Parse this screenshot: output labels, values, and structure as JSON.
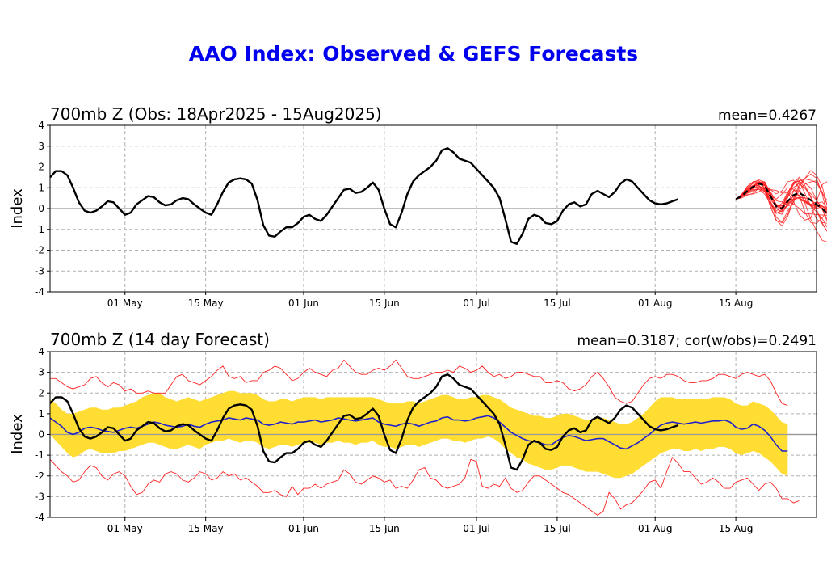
{
  "title": "AAO Index: Observed & GEFS Forecasts",
  "colors": {
    "title": "#0000ee",
    "obs": "#000000",
    "member": "#ff2020",
    "mean": "#2020cc",
    "spread": "#ffdd33",
    "grid": "#b0b0b0"
  },
  "chart_data": [
    {
      "type": "line",
      "title": "700mb Z (Obs: 18Apr2025 - 15Aug2025)",
      "stat": "mean=0.4267",
      "ylabel": "Index",
      "ylim": [
        -4,
        4
      ],
      "yticks": [
        "4",
        "3",
        "2",
        "1",
        "0",
        "-1",
        "-2",
        "-3",
        "-4"
      ],
      "xticks": [
        {
          "day": 13,
          "label": "01 May"
        },
        {
          "day": 27,
          "label": "15 May"
        },
        {
          "day": 44,
          "label": "01 Jun"
        },
        {
          "day": 58,
          "label": "15 Jun"
        },
        {
          "day": 74,
          "label": "01 Jul"
        },
        {
          "day": 88,
          "label": "15 Jul"
        },
        {
          "day": 105,
          "label": "01 Aug"
        },
        {
          "day": 119,
          "label": "15 Aug"
        }
      ],
      "xlim": [
        0,
        133
      ],
      "series": [
        {
          "name": "Observed",
          "values": [
            1.5,
            1.8,
            1.8,
            1.6,
            1.0,
            0.3,
            -0.1,
            -0.2,
            -0.1,
            0.1,
            0.35,
            0.3,
            0.0,
            -0.3,
            -0.2,
            0.2,
            0.4,
            0.6,
            0.55,
            0.3,
            0.15,
            0.2,
            0.4,
            0.5,
            0.45,
            0.2,
            0.0,
            -0.2,
            -0.3,
            0.2,
            0.8,
            1.25,
            1.4,
            1.45,
            1.4,
            1.2,
            0.4,
            -0.8,
            -1.3,
            -1.35,
            -1.1,
            -0.9,
            -0.9,
            -0.7,
            -0.4,
            -0.3,
            -0.5,
            -0.6,
            -0.3,
            0.1,
            0.5,
            0.9,
            0.95,
            0.75,
            0.8,
            1.0,
            1.25,
            0.9,
            0.0,
            -0.75,
            -0.9,
            -0.2,
            0.7,
            1.3,
            1.6,
            1.8,
            2.0,
            2.3,
            2.8,
            2.9,
            2.7,
            2.4,
            2.3,
            2.2,
            1.9,
            1.6,
            1.3,
            1.0,
            0.5,
            -0.5,
            -1.6,
            -1.7,
            -1.2,
            -0.5,
            -0.3,
            -0.4,
            -0.7,
            -0.75,
            -0.6,
            -0.1,
            0.2,
            0.3,
            0.1,
            0.2,
            0.7,
            0.85,
            0.7,
            0.55,
            0.8,
            1.2,
            1.4,
            1.3,
            1.0,
            0.7,
            0.4,
            0.25,
            0.2,
            0.25,
            0.35,
            0.45
          ]
        },
        {
          "name": "GEFS ensemble mean",
          "start": 119,
          "values": [
            0.45,
            0.6,
            0.85,
            1.05,
            1.2,
            1.1,
            0.6,
            0.1,
            0.0,
            0.35,
            0.65,
            0.75,
            0.6,
            0.4,
            0.2,
            0.0,
            -0.3,
            -0.7,
            -0.9,
            -1.2
          ]
        }
      ],
      "members": 20
    },
    {
      "type": "line",
      "title": "700mb Z (14 day Forecast)",
      "stat": "mean=0.3187; cor(w/obs)=0.2491",
      "ylabel": "Index",
      "ylim": [
        -4,
        4
      ],
      "yticks": [
        "4",
        "3",
        "2",
        "1",
        "0",
        "-1",
        "-2",
        "-3",
        "-4"
      ],
      "xlim": [
        0,
        133
      ],
      "series": [
        {
          "name": "Observed",
          "ref": "panel1"
        },
        {
          "name": "14-day forecast mean",
          "values": [
            0.8,
            0.6,
            0.4,
            0.1,
            0.0,
            0.1,
            0.3,
            0.35,
            0.3,
            0.2,
            0.15,
            0.1,
            0.2,
            0.3,
            0.35,
            0.3,
            0.4,
            0.5,
            0.6,
            0.55,
            0.45,
            0.4,
            0.35,
            0.4,
            0.5,
            0.4,
            0.35,
            0.5,
            0.6,
            0.65,
            0.7,
            0.8,
            0.75,
            0.7,
            0.8,
            0.75,
            0.7,
            0.5,
            0.45,
            0.5,
            0.6,
            0.55,
            0.5,
            0.6,
            0.6,
            0.65,
            0.7,
            0.6,
            0.65,
            0.7,
            0.8,
            0.75,
            0.7,
            0.65,
            0.7,
            0.75,
            0.8,
            0.6,
            0.5,
            0.45,
            0.4,
            0.5,
            0.55,
            0.5,
            0.4,
            0.5,
            0.6,
            0.65,
            0.8,
            0.85,
            0.7,
            0.7,
            0.65,
            0.7,
            0.8,
            0.85,
            0.9,
            0.8,
            0.6,
            0.35,
            0.1,
            -0.05,
            -0.2,
            -0.3,
            -0.35,
            -0.4,
            -0.5,
            -0.5,
            -0.3,
            -0.15,
            -0.05,
            -0.1,
            -0.2,
            -0.3,
            -0.25,
            -0.2,
            -0.2,
            -0.35,
            -0.5,
            -0.65,
            -0.7,
            -0.55,
            -0.4,
            -0.2,
            0.0,
            0.25,
            0.45,
            0.55,
            0.6,
            0.55,
            0.5,
            0.55,
            0.6,
            0.55,
            0.6,
            0.65,
            0.65,
            0.7,
            0.6,
            0.35,
            0.25,
            0.3,
            0.5,
            0.4,
            0.2,
            -0.1,
            -0.5,
            -0.8,
            -0.8
          ]
        },
        {
          "name": "Upper spread",
          "values": [
            1.7,
            1.5,
            1.2,
            1.0,
            1.0,
            1.1,
            1.2,
            1.3,
            1.3,
            1.2,
            1.2,
            1.3,
            1.3,
            1.4,
            1.5,
            1.6,
            1.8,
            1.9,
            2.0,
            2.0,
            1.8,
            1.7,
            1.6,
            1.7,
            1.8,
            1.7,
            1.6,
            1.7,
            1.8,
            1.9,
            2.0,
            2.1,
            2.1,
            2.0,
            2.0,
            2.0,
            1.9,
            1.7,
            1.6,
            1.6,
            1.7,
            1.7,
            1.6,
            1.7,
            1.8,
            1.8,
            1.8,
            1.7,
            1.8,
            1.8,
            1.8,
            1.8,
            1.8,
            1.8,
            1.8,
            1.8,
            1.8,
            1.7,
            1.6,
            1.5,
            1.5,
            1.5,
            1.6,
            1.6,
            1.5,
            1.6,
            1.7,
            1.8,
            1.9,
            1.9,
            1.8,
            1.7,
            1.7,
            1.8,
            1.8,
            1.9,
            1.9,
            1.8,
            1.7,
            1.5,
            1.3,
            1.2,
            1.1,
            1.0,
            0.9,
            0.9,
            0.8,
            0.8,
            0.9,
            1.0,
            1.0,
            0.9,
            0.8,
            0.7,
            0.7,
            0.8,
            0.8,
            0.7,
            0.6,
            0.5,
            0.5,
            0.6,
            0.8,
            1.0,
            1.3,
            1.6,
            1.8,
            1.8,
            1.8,
            1.7,
            1.7,
            1.7,
            1.7,
            1.7,
            1.7,
            1.8,
            1.8,
            1.8,
            1.7,
            1.5,
            1.4,
            1.4,
            1.6,
            1.5,
            1.4,
            1.2,
            0.9,
            0.6,
            0.5
          ]
        },
        {
          "name": "Lower spread",
          "values": [
            0.0,
            -0.3,
            -0.6,
            -0.9,
            -1.1,
            -1.0,
            -0.8,
            -0.7,
            -0.8,
            -0.9,
            -0.9,
            -0.9,
            -0.8,
            -0.8,
            -0.7,
            -0.6,
            -0.5,
            -0.4,
            -0.4,
            -0.5,
            -0.6,
            -0.7,
            -0.7,
            -0.6,
            -0.5,
            -0.6,
            -0.7,
            -0.5,
            -0.4,
            -0.3,
            -0.3,
            -0.2,
            -0.3,
            -0.4,
            -0.3,
            -0.3,
            -0.4,
            -0.6,
            -0.7,
            -0.6,
            -0.5,
            -0.5,
            -0.6,
            -0.5,
            -0.4,
            -0.4,
            -0.4,
            -0.5,
            -0.4,
            -0.4,
            -0.3,
            -0.4,
            -0.4,
            -0.5,
            -0.4,
            -0.4,
            -0.3,
            -0.5,
            -0.6,
            -0.6,
            -0.7,
            -0.6,
            -0.5,
            -0.5,
            -0.6,
            -0.5,
            -0.4,
            -0.3,
            -0.2,
            -0.2,
            -0.3,
            -0.3,
            -0.4,
            -0.3,
            -0.2,
            -0.2,
            -0.1,
            -0.2,
            -0.4,
            -0.7,
            -0.9,
            -1.1,
            -1.2,
            -1.4,
            -1.5,
            -1.6,
            -1.7,
            -1.7,
            -1.6,
            -1.5,
            -1.5,
            -1.6,
            -1.7,
            -1.8,
            -1.8,
            -1.8,
            -1.9,
            -2.0,
            -2.1,
            -2.1,
            -2.0,
            -1.9,
            -1.7,
            -1.5,
            -1.3,
            -1.1,
            -0.9,
            -0.8,
            -0.7,
            -0.7,
            -0.8,
            -0.8,
            -0.7,
            -0.8,
            -0.7,
            -0.7,
            -0.6,
            -0.6,
            -0.7,
            -0.9,
            -1.0,
            -0.9,
            -0.8,
            -0.9,
            -1.1,
            -1.3,
            -1.6,
            -1.9,
            -2.0
          ]
        },
        {
          "name": "Ensemble max",
          "values": [
            2.7,
            2.7,
            2.5,
            2.3,
            2.2,
            2.3,
            2.4,
            2.7,
            2.8,
            2.5,
            2.3,
            2.5,
            2.4,
            2.1,
            2.2,
            2.0,
            2.0,
            2.1,
            2.0,
            2.0,
            2.0,
            2.4,
            2.8,
            2.9,
            2.6,
            2.5,
            2.4,
            2.6,
            2.8,
            3.1,
            3.3,
            2.8,
            2.7,
            2.8,
            2.5,
            2.6,
            2.6,
            3.0,
            3.1,
            3.3,
            3.2,
            2.9,
            2.6,
            2.7,
            3.0,
            3.2,
            3.0,
            2.9,
            2.8,
            3.1,
            3.2,
            3.6,
            3.3,
            3.0,
            2.9,
            2.9,
            3.1,
            3.2,
            3.1,
            3.3,
            3.6,
            3.2,
            2.8,
            2.7,
            2.7,
            2.8,
            2.9,
            3.0,
            3.0,
            3.1,
            3.0,
            3.3,
            3.2,
            3.0,
            3.1,
            3.3,
            3.0,
            2.8,
            2.9,
            2.7,
            2.8,
            3.0,
            3.0,
            2.9,
            2.8,
            2.8,
            2.5,
            2.5,
            2.6,
            2.5,
            2.2,
            2.1,
            2.2,
            2.4,
            2.8,
            3.0,
            2.7,
            2.3,
            1.8,
            1.6,
            1.5,
            1.6,
            2.0,
            2.4,
            2.7,
            2.8,
            2.7,
            2.9,
            2.9,
            2.8,
            2.6,
            2.5,
            2.5,
            2.6,
            2.6,
            2.7,
            2.9,
            2.9,
            2.8,
            2.7,
            2.9,
            3.0,
            2.9,
            2.8,
            2.9,
            2.6,
            2.0,
            1.5,
            1.4
          ]
        },
        {
          "name": "Ensemble min",
          "values": [
            -1.2,
            -1.5,
            -1.8,
            -2.0,
            -2.3,
            -2.2,
            -1.8,
            -1.5,
            -1.6,
            -2.0,
            -2.2,
            -1.9,
            -1.8,
            -2.0,
            -2.5,
            -2.9,
            -2.8,
            -2.4,
            -2.2,
            -2.3,
            -1.9,
            -1.8,
            -1.9,
            -2.2,
            -2.3,
            -2.1,
            -1.8,
            -1.9,
            -2.2,
            -2.1,
            -1.8,
            -2.0,
            -1.9,
            -2.2,
            -2.1,
            -2.3,
            -2.5,
            -2.8,
            -2.8,
            -2.7,
            -2.9,
            -3.0,
            -2.5,
            -2.9,
            -2.6,
            -2.6,
            -2.4,
            -2.6,
            -2.4,
            -2.3,
            -2.2,
            -1.7,
            -1.9,
            -2.3,
            -2.4,
            -2.2,
            -2.0,
            -2.1,
            -2.3,
            -2.2,
            -2.6,
            -2.5,
            -2.6,
            -2.2,
            -1.7,
            -1.6,
            -2.1,
            -2.2,
            -2.5,
            -2.6,
            -2.5,
            -2.4,
            -2.1,
            -1.2,
            -1.3,
            -2.5,
            -2.6,
            -2.4,
            -2.5,
            -2.1,
            -2.6,
            -2.8,
            -2.7,
            -2.3,
            -2.0,
            -2.0,
            -2.2,
            -2.4,
            -2.6,
            -2.8,
            -2.9,
            -3.1,
            -3.3,
            -3.5,
            -3.7,
            -3.9,
            -3.7,
            -2.8,
            -3.1,
            -3.6,
            -3.4,
            -3.3,
            -3.0,
            -2.7,
            -2.3,
            -2.2,
            -2.6,
            -1.8,
            -1.1,
            -1.4,
            -1.8,
            -1.8,
            -2.1,
            -2.4,
            -2.3,
            -2.1,
            -2.3,
            -2.6,
            -2.6,
            -2.3,
            -2.2,
            -2.1,
            -2.4,
            -2.7,
            -2.4,
            -2.3,
            -2.6,
            -3.1,
            -3.1,
            -3.3,
            -3.2
          ]
        }
      ]
    }
  ]
}
